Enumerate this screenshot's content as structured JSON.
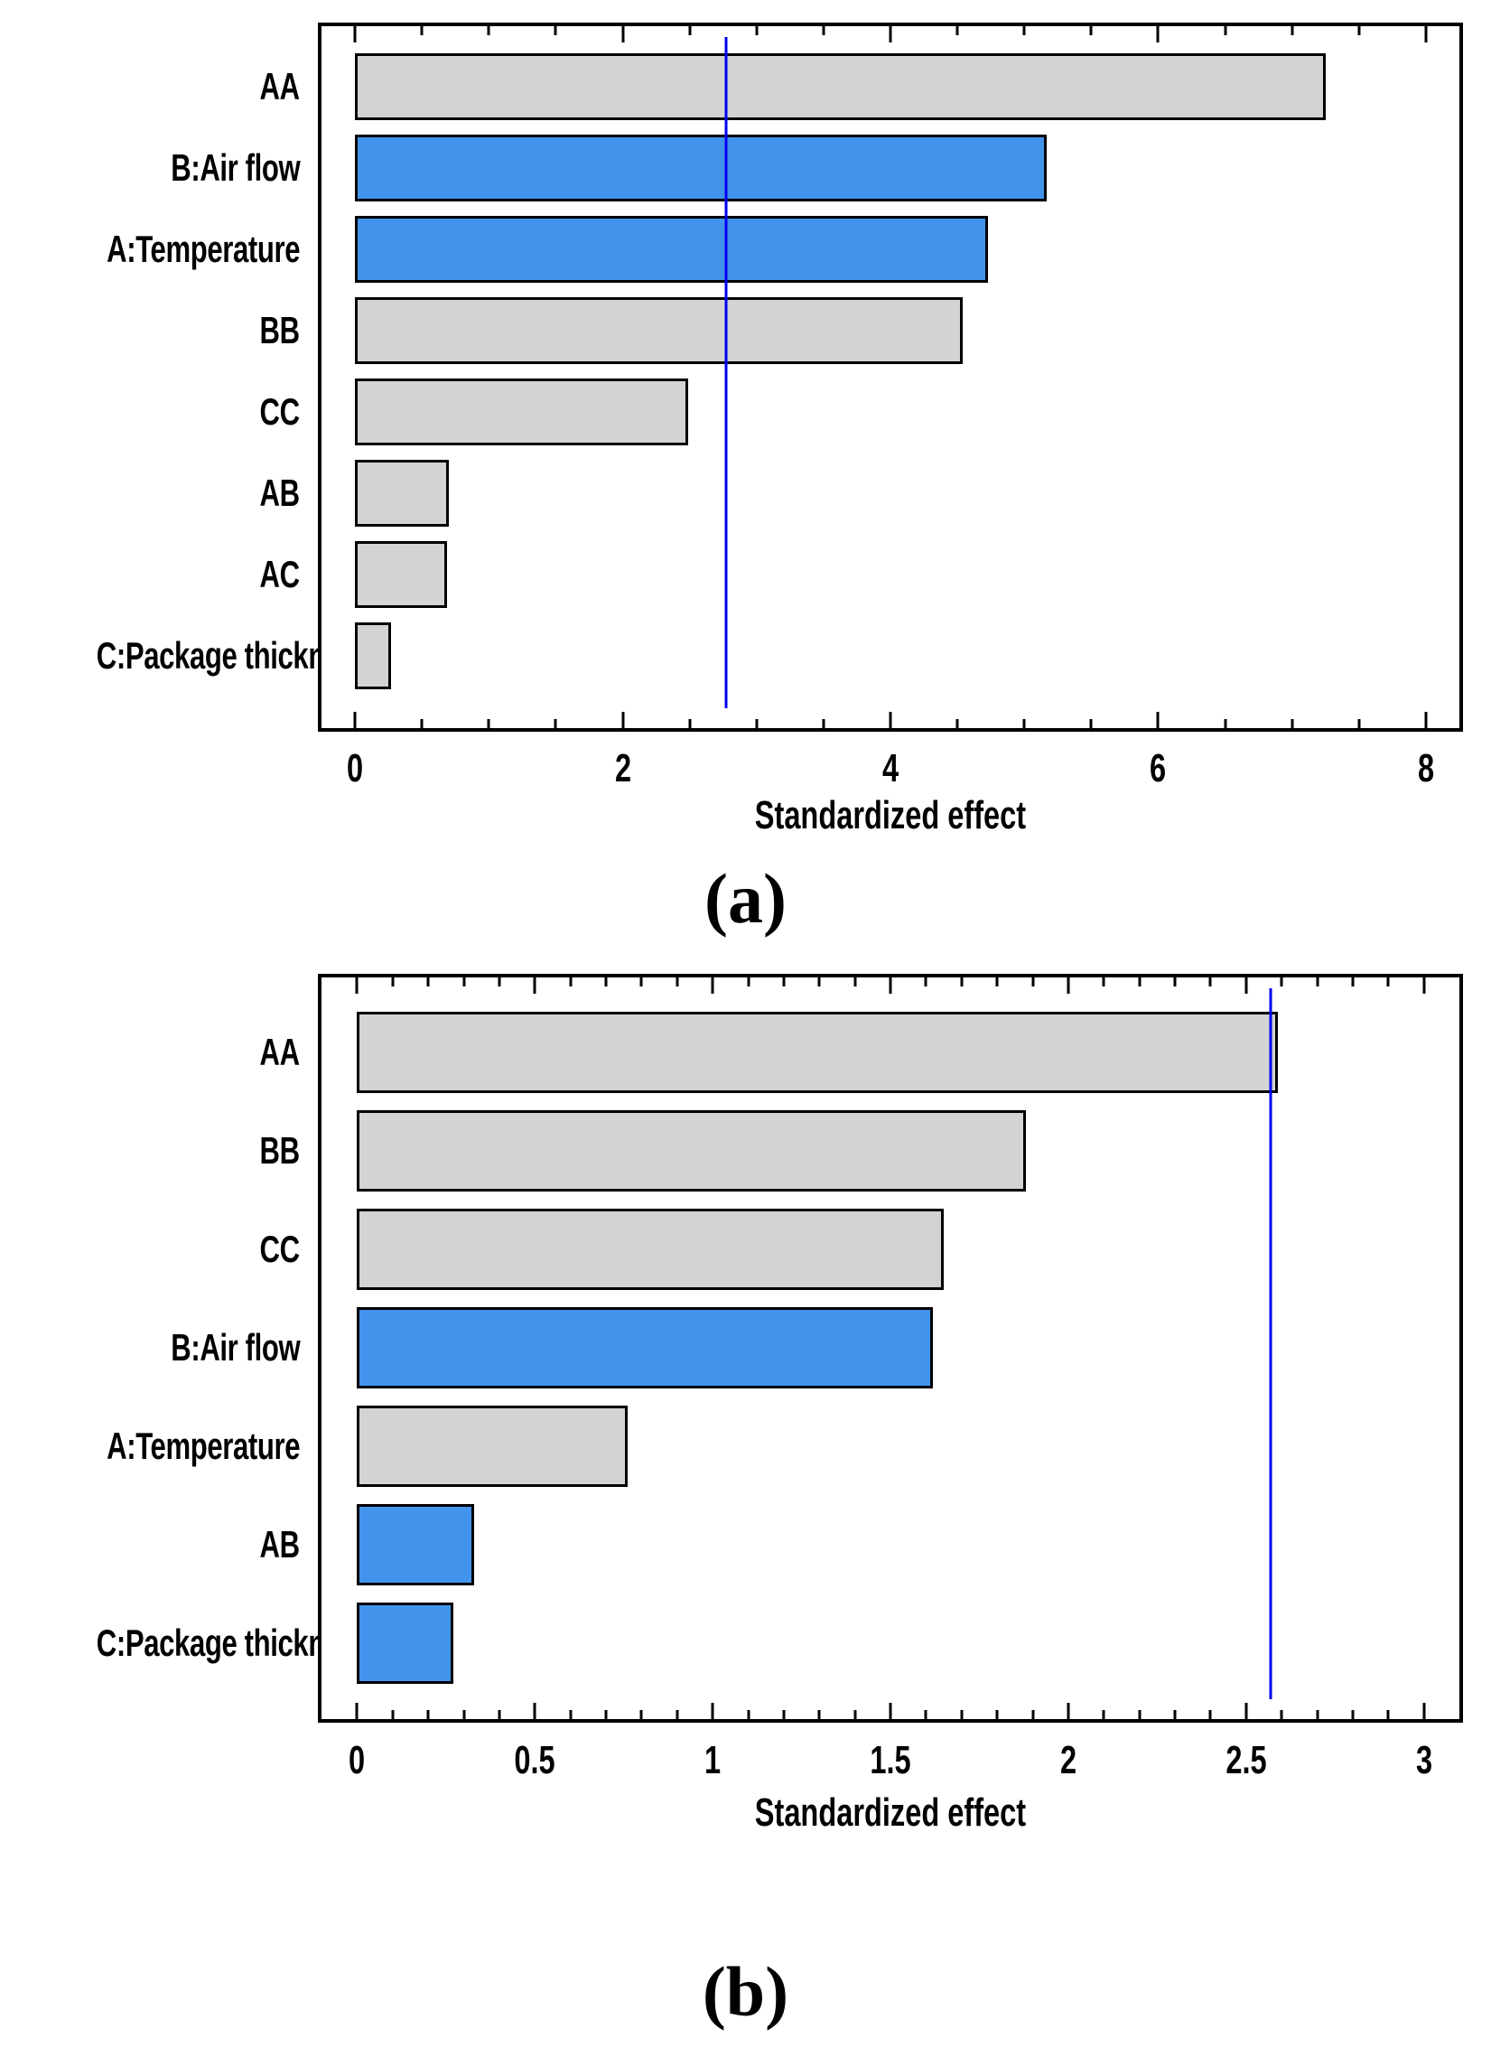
{
  "colors": {
    "bar_gray": "#d3d3d3",
    "bar_blue": "#4293eb",
    "bar_border": "#000000",
    "reference_line": "#0000ee",
    "axis": "#000000",
    "background": "#ffffff"
  },
  "chart_data": [
    {
      "type": "bar",
      "orientation": "horizontal",
      "panel_label": "(a)",
      "xlabel": "Standardized effect",
      "categories": [
        "AA",
        "B:Air flow",
        "A:Temperature",
        "BB",
        "CC",
        "AB",
        "AC",
        "C:Package thickness"
      ],
      "values": [
        7.25,
        5.17,
        4.73,
        4.54,
        2.49,
        0.7,
        0.69,
        0.27
      ],
      "bar_colors": [
        "gray",
        "blue",
        "blue",
        "gray",
        "gray",
        "gray",
        "gray",
        "gray"
      ],
      "reference_line": 2.77,
      "xlim": [
        -0.25,
        8.25
      ],
      "x_major_ticks": [
        0,
        2,
        4,
        6,
        8
      ],
      "x_tick_labels": [
        "0",
        "2",
        "4",
        "6",
        "8"
      ],
      "x_minor_step": 0.5,
      "grid": false,
      "legend": false
    },
    {
      "type": "bar",
      "orientation": "horizontal",
      "panel_label": "(b)",
      "xlabel": "Standardized effect",
      "categories": [
        "AA",
        "BB",
        "CC",
        "B:Air flow",
        "A:Temperature",
        "AB",
        "C:Package thickness"
      ],
      "values": [
        2.59,
        1.88,
        1.65,
        1.62,
        0.76,
        0.33,
        0.27
      ],
      "bar_colors": [
        "gray",
        "gray",
        "gray",
        "blue",
        "gray",
        "blue",
        "blue"
      ],
      "reference_line": 2.57,
      "xlim": [
        -0.1,
        3.1
      ],
      "x_major_ticks": [
        0,
        0.5,
        1,
        1.5,
        2,
        2.5,
        3
      ],
      "x_tick_labels": [
        "0",
        "0.5",
        "1",
        "1.5",
        "2",
        "2.5",
        "3"
      ],
      "x_minor_step": 0.1,
      "grid": false,
      "legend": false
    }
  ]
}
